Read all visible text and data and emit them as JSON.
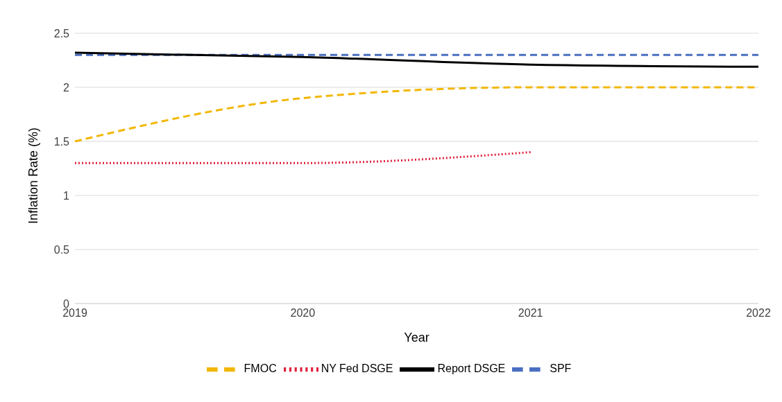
{
  "chart_data": {
    "type": "line",
    "xlabel": "Year",
    "ylabel": "Inflation Rate (%)",
    "categories": [
      "2019",
      "2020",
      "2021",
      "2022"
    ],
    "ylim": [
      0,
      2.5
    ],
    "yticks": [
      0,
      0.5,
      1,
      1.5,
      2,
      2.5
    ],
    "grid": "y",
    "legend": "bottom",
    "marker": "none",
    "series": [
      {
        "name": "FMOC",
        "color": "#f2b705",
        "line_style": "dashed",
        "values": [
          1.5,
          1.9,
          2.0,
          2.0
        ]
      },
      {
        "name": "SPF",
        "color": "#4a6fc0",
        "line_style": "dashed",
        "values": [
          2.3,
          2.3,
          2.3,
          2.3
        ]
      },
      {
        "name": "NY Fed DSGE",
        "color": "#e0203c",
        "line_style": "dotted",
        "values": [
          1.3,
          1.3,
          1.4,
          null
        ]
      },
      {
        "name": "Report DSGE",
        "color": "#000000",
        "line_style": "solid",
        "values": [
          2.32,
          2.28,
          2.21,
          2.19
        ]
      }
    ]
  }
}
